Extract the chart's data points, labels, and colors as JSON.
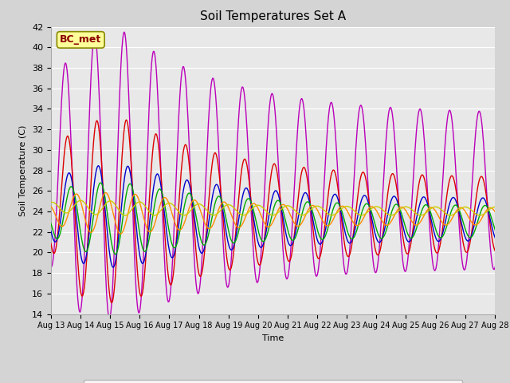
{
  "title": "Soil Temperatures Set A",
  "xlabel": "Time",
  "ylabel": "Soil Temperature (C)",
  "ylim": [
    14,
    42
  ],
  "yticks": [
    14,
    16,
    18,
    20,
    22,
    24,
    26,
    28,
    30,
    32,
    34,
    36,
    38,
    40,
    42
  ],
  "annotation": "BC_met",
  "annotation_color": "#8B0000",
  "annotation_bg": "#FFFF99",
  "fig_facecolor": "#D4D4D4",
  "plot_facecolor": "#E8E8E8",
  "colors": {
    "-2cm": "#DD0000",
    "-4cm": "#0000CC",
    "-8cm": "#00AA00",
    "-16cm": "#FF8C00",
    "-32cm": "#CCCC00",
    "Theta_Temp": "#BB00BB"
  },
  "xtick_labels": [
    "Aug 13",
    "Aug 14",
    "Aug 15",
    "Aug 16",
    "Aug 17",
    "Aug 18",
    "Aug 19",
    "Aug 20",
    "Aug 21",
    "Aug 22",
    "Aug 23",
    "Aug 24",
    "Aug 25",
    "Aug 26",
    "Aug 27",
    "Aug 28"
  ],
  "n_days": 16,
  "figsize": [
    6.4,
    4.8
  ],
  "dpi": 100
}
